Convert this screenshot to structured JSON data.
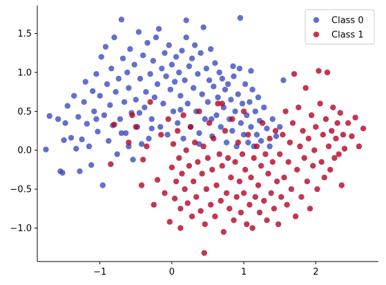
{
  "chart_data": {
    "type": "scatter",
    "title": "",
    "xlabel": "",
    "ylabel": "",
    "xlim": [
      -1.87,
      2.87
    ],
    "ylim": [
      -1.43,
      1.86
    ],
    "grid": false,
    "legend": {
      "placement": "top-right"
    },
    "x_ticks": [
      -1,
      0,
      1,
      2
    ],
    "x_tick_labels": [
      "−1",
      "0",
      "1",
      "2"
    ],
    "y_ticks": [
      -1.0,
      -0.5,
      0.0,
      0.5,
      1.0,
      1.5
    ],
    "y_tick_labels": [
      "−1.0",
      "−0.5",
      "0.0",
      "0.5",
      "1.0",
      "1.5"
    ],
    "series": [
      {
        "name": "Class 0",
        "color": "#3b4cc0",
        "points": [
          [
            -1.75,
            0.01
          ],
          [
            -1.7,
            0.44
          ],
          [
            -1.58,
            0.4
          ],
          [
            -1.55,
            -0.27
          ],
          [
            -1.52,
            -0.29
          ],
          [
            -1.5,
            0.13
          ],
          [
            -1.48,
            0.35
          ],
          [
            -1.45,
            0.57
          ],
          [
            -1.4,
            0.16
          ],
          [
            -1.36,
            0.7
          ],
          [
            -1.33,
            0.02
          ],
          [
            -1.3,
            0.43
          ],
          [
            -1.28,
            -0.27
          ],
          [
            -1.25,
            0.14
          ],
          [
            -1.22,
            0.62
          ],
          [
            -1.2,
            0.88
          ],
          [
            -1.18,
            0.34
          ],
          [
            -1.15,
            0.05
          ],
          [
            -1.12,
            -0.19
          ],
          [
            -1.1,
            0.76
          ],
          [
            -1.08,
            0.5
          ],
          [
            -1.05,
            0.98
          ],
          [
            -1.03,
            0.24
          ],
          [
            -1.0,
            0.7
          ],
          [
            -0.98,
            1.2
          ],
          [
            -0.96,
            -0.45
          ],
          [
            -0.94,
            0.45
          ],
          [
            -0.92,
            1.33
          ],
          [
            -0.9,
            0.85
          ],
          [
            -0.88,
            0.12
          ],
          [
            -0.86,
            0.58
          ],
          [
            -0.84,
            1.05
          ],
          [
            -0.82,
            0.32
          ],
          [
            -0.8,
            1.45
          ],
          [
            -0.78,
            0.75
          ],
          [
            -0.76,
            -0.05
          ],
          [
            -0.74,
            0.92
          ],
          [
            -0.72,
            0.4
          ],
          [
            -0.7,
            1.68
          ],
          [
            -0.68,
            1.18
          ],
          [
            -0.66,
            0.62
          ],
          [
            -0.64,
            0.22
          ],
          [
            -0.62,
            1.0
          ],
          [
            -0.6,
            0.8
          ],
          [
            -0.58,
            1.3
          ],
          [
            -0.56,
            0.48
          ],
          [
            -0.54,
            -0.12
          ],
          [
            -0.52,
            1.1
          ],
          [
            -0.5,
            0.65
          ],
          [
            -0.48,
            0.3
          ],
          [
            -0.46,
            1.52
          ],
          [
            -0.44,
            0.92
          ],
          [
            -0.42,
            0.08
          ],
          [
            -0.4,
            1.22
          ],
          [
            -0.38,
            0.55
          ],
          [
            -0.36,
            0.75
          ],
          [
            -0.34,
            1.38
          ],
          [
            -0.32,
            0.15
          ],
          [
            -0.3,
            0.98
          ],
          [
            -0.28,
            0.4
          ],
          [
            -0.26,
            1.15
          ],
          [
            -0.24,
            0.68
          ],
          [
            -0.22,
            1.45
          ],
          [
            -0.2,
            0.85
          ],
          [
            -0.18,
            1.56
          ],
          [
            -0.16,
            0.3
          ],
          [
            -0.14,
            1.05
          ],
          [
            -0.12,
            0.6
          ],
          [
            -0.1,
            1.25
          ],
          [
            -0.08,
            0.95
          ],
          [
            -0.06,
            0.2
          ],
          [
            -0.04,
            1.35
          ],
          [
            -0.02,
            0.78
          ],
          [
            0.0,
            1.1
          ],
          [
            0.02,
            0.5
          ],
          [
            0.04,
            0.88
          ],
          [
            0.06,
            1.2
          ],
          [
            0.08,
            0.35
          ],
          [
            0.1,
            1.0
          ],
          [
            0.12,
            0.7
          ],
          [
            0.14,
            1.28
          ],
          [
            0.16,
            0.15
          ],
          [
            0.18,
            0.9
          ],
          [
            0.2,
            1.45
          ],
          [
            0.22,
            0.6
          ],
          [
            0.24,
            1.08
          ],
          [
            0.26,
            0.3
          ],
          [
            0.28,
            1.18
          ],
          [
            0.3,
            0.8
          ],
          [
            0.32,
            1.35
          ],
          [
            0.34,
            0.5
          ],
          [
            0.36,
            0.98
          ],
          [
            0.38,
            0.22
          ],
          [
            0.4,
            1.25
          ],
          [
            0.42,
            0.72
          ],
          [
            0.44,
            1.58
          ],
          [
            0.46,
            0.4
          ],
          [
            0.48,
            1.05
          ],
          [
            0.5,
            0.62
          ],
          [
            0.52,
            0.9
          ],
          [
            0.54,
            1.3
          ],
          [
            0.56,
            0.18
          ],
          [
            0.58,
            0.82
          ],
          [
            0.6,
            1.12
          ],
          [
            0.62,
            0.45
          ],
          [
            0.64,
            0.68
          ],
          [
            0.66,
            1.0
          ],
          [
            0.68,
            0.3
          ],
          [
            0.7,
            0.92
          ],
          [
            0.72,
            0.55
          ],
          [
            0.74,
            0.78
          ],
          [
            0.76,
            0.1
          ],
          [
            0.78,
            0.85
          ],
          [
            0.8,
            0.4
          ],
          [
            0.82,
            0.65
          ],
          [
            0.84,
            0.25
          ],
          [
            0.86,
            0.95
          ],
          [
            0.88,
            0.5
          ],
          [
            0.9,
            0.05
          ],
          [
            0.92,
            0.72
          ],
          [
            0.94,
            1.05
          ],
          [
            0.96,
            0.35
          ],
          [
            0.98,
            0.6
          ],
          [
            1.0,
            0.2
          ],
          [
            1.02,
            0.85
          ],
          [
            1.04,
            0.45
          ],
          [
            1.06,
            0.1
          ],
          [
            1.08,
            0.62
          ],
          [
            1.1,
            0.3
          ],
          [
            1.12,
            0.78
          ],
          [
            1.14,
            0.05
          ],
          [
            1.16,
            0.5
          ],
          [
            1.18,
            0.2
          ],
          [
            1.2,
            0.68
          ],
          [
            1.22,
            0.38
          ],
          [
            1.24,
            0.12
          ],
          [
            1.28,
            0.55
          ],
          [
            1.32,
            0.28
          ],
          [
            1.36,
            0.05
          ],
          [
            1.4,
            0.4
          ],
          [
            1.45,
            0.18
          ],
          [
            1.5,
            0.3
          ],
          [
            1.55,
            0.9
          ],
          [
            0.95,
            1.7
          ],
          [
            0.2,
            1.67
          ],
          [
            -0.6,
            0.05
          ],
          [
            -0.45,
            0.48
          ],
          [
            -0.28,
            0.28
          ],
          [
            0.12,
            0.52
          ],
          [
            0.55,
            0.4
          ],
          [
            0.85,
            1.08
          ],
          [
            1.1,
            1.02
          ],
          [
            -1.05,
            0.4
          ],
          [
            -0.7,
            0.22
          ],
          [
            0.38,
            0.08
          ]
        ]
      },
      {
        "name": "Class 1",
        "color": "#b40426",
        "points": [
          [
            -0.85,
            -0.18
          ],
          [
            -0.8,
            0.33
          ],
          [
            -0.6,
            0.1
          ],
          [
            -0.55,
            0.45
          ],
          [
            -0.5,
            0.3
          ],
          [
            -0.42,
            -0.45
          ],
          [
            -0.4,
            -0.12
          ],
          [
            -0.35,
            0.05
          ],
          [
            -0.3,
            0.62
          ],
          [
            -0.25,
            -0.7
          ],
          [
            -0.2,
            -0.38
          ],
          [
            -0.15,
            0.2
          ],
          [
            -0.1,
            -0.55
          ],
          [
            -0.05,
            0.4
          ],
          [
            -0.03,
            -0.92
          ],
          [
            0.0,
            -0.22
          ],
          [
            0.02,
            0.08
          ],
          [
            0.04,
            -0.62
          ],
          [
            0.06,
            -0.4
          ],
          [
            0.08,
            0.25
          ],
          [
            0.1,
            -0.1
          ],
          [
            0.12,
            -0.75
          ],
          [
            0.14,
            -0.3
          ],
          [
            0.16,
            0.45
          ],
          [
            0.18,
            -0.5
          ],
          [
            0.2,
            0.0
          ],
          [
            0.22,
            -0.68
          ],
          [
            0.24,
            -0.2
          ],
          [
            0.26,
            0.3
          ],
          [
            0.28,
            -0.85
          ],
          [
            0.3,
            -0.4
          ],
          [
            0.32,
            0.1
          ],
          [
            0.34,
            -0.6
          ],
          [
            0.36,
            -0.15
          ],
          [
            0.38,
            0.5
          ],
          [
            0.4,
            -0.78
          ],
          [
            0.42,
            -0.3
          ],
          [
            0.44,
            0.05
          ],
          [
            0.46,
            -0.95
          ],
          [
            0.48,
            -0.5
          ],
          [
            0.5,
            -0.1
          ],
          [
            0.52,
            0.35
          ],
          [
            0.54,
            -0.7
          ],
          [
            0.56,
            -0.25
          ],
          [
            0.58,
            0.15
          ],
          [
            0.6,
            -0.85
          ],
          [
            0.62,
            -0.45
          ],
          [
            0.64,
            0.6
          ],
          [
            0.66,
            -0.05
          ],
          [
            0.68,
            -0.65
          ],
          [
            0.7,
            -0.2
          ],
          [
            0.72,
            -1.05
          ],
          [
            0.74,
            0.25
          ],
          [
            0.76,
            -0.55
          ],
          [
            0.78,
            -0.1
          ],
          [
            0.8,
            -0.75
          ],
          [
            0.82,
            -0.35
          ],
          [
            0.84,
            0.4
          ],
          [
            0.86,
            -0.9
          ],
          [
            0.88,
            -0.15
          ],
          [
            0.9,
            -0.6
          ],
          [
            0.92,
            0.1
          ],
          [
            0.94,
            -0.4
          ],
          [
            0.96,
            -0.8
          ],
          [
            0.98,
            -0.05
          ],
          [
            1.0,
            -0.55
          ],
          [
            1.02,
            -0.25
          ],
          [
            1.04,
            -0.95
          ],
          [
            1.06,
            0.2
          ],
          [
            1.08,
            -0.7
          ],
          [
            1.1,
            -0.35
          ],
          [
            1.12,
            -1.0
          ],
          [
            1.14,
            -0.1
          ],
          [
            1.16,
            -0.6
          ],
          [
            1.18,
            0.05
          ],
          [
            1.2,
            -0.45
          ],
          [
            1.22,
            -0.8
          ],
          [
            1.24,
            -0.2
          ],
          [
            1.26,
            0.35
          ],
          [
            1.28,
            -0.65
          ],
          [
            1.3,
            -0.05
          ],
          [
            1.32,
            -0.9
          ],
          [
            1.34,
            -0.3
          ],
          [
            1.36,
            0.15
          ],
          [
            1.38,
            -0.55
          ],
          [
            1.4,
            -0.15
          ],
          [
            1.42,
            -0.75
          ],
          [
            1.44,
            0.25
          ],
          [
            1.46,
            -0.4
          ],
          [
            1.48,
            -0.95
          ],
          [
            1.5,
            -0.05
          ],
          [
            1.52,
            -0.6
          ],
          [
            1.54,
            0.2
          ],
          [
            1.56,
            -0.35
          ],
          [
            1.58,
            0.5
          ],
          [
            1.6,
            -0.7
          ],
          [
            1.62,
            -0.15
          ],
          [
            1.64,
            0.1
          ],
          [
            1.66,
            -0.5
          ],
          [
            1.68,
            0.35
          ],
          [
            1.7,
            0.98
          ],
          [
            1.72,
            -0.85
          ],
          [
            1.74,
            -0.25
          ],
          [
            1.76,
            0.55
          ],
          [
            1.78,
            0.05
          ],
          [
            1.8,
            -0.6
          ],
          [
            1.82,
            0.25
          ],
          [
            1.84,
            -0.1
          ],
          [
            1.86,
            0.8
          ],
          [
            1.88,
            -0.4
          ],
          [
            1.9,
            0.15
          ],
          [
            1.92,
            -0.75
          ],
          [
            1.94,
            0.45
          ],
          [
            1.96,
            -0.2
          ],
          [
            1.98,
            0.0
          ],
          [
            2.0,
            0.3
          ],
          [
            2.02,
            -0.5
          ],
          [
            2.04,
            1.02
          ],
          [
            2.06,
            0.6
          ],
          [
            2.08,
            -0.15
          ],
          [
            2.1,
            0.2
          ],
          [
            2.12,
            -0.35
          ],
          [
            2.14,
            0.4
          ],
          [
            2.16,
            1.0
          ],
          [
            2.18,
            0.05
          ],
          [
            2.2,
            -0.25
          ],
          [
            2.22,
            0.25
          ],
          [
            2.24,
            0.55
          ],
          [
            2.26,
            -0.1
          ],
          [
            2.28,
            0.15
          ],
          [
            2.3,
            0.35
          ],
          [
            2.32,
            -0.05
          ],
          [
            2.34,
            0.48
          ],
          [
            2.36,
            -0.45
          ],
          [
            2.38,
            0.2
          ],
          [
            2.4,
            0.02
          ],
          [
            2.45,
            0.35
          ],
          [
            2.5,
            0.18
          ],
          [
            2.55,
            0.42
          ],
          [
            2.6,
            0.05
          ],
          [
            2.66,
            0.28
          ],
          [
            0.45,
            -1.32
          ],
          [
            0.12,
            -1.0
          ],
          [
            0.7,
            0.6
          ],
          [
            1.0,
            0.5
          ]
        ]
      }
    ]
  }
}
